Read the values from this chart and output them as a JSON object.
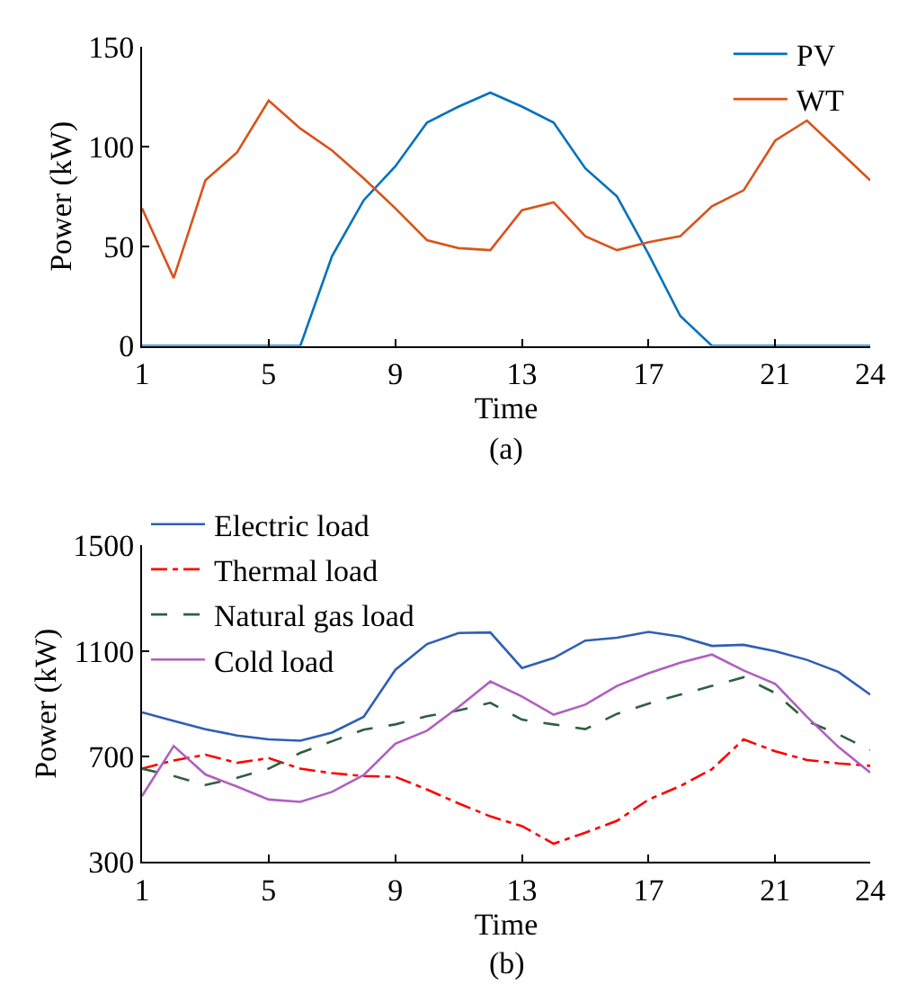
{
  "chart_data": [
    {
      "type": "line",
      "xlabel": "Time",
      "ylabel": "Power (kW)",
      "annotations": [
        "(a)"
      ],
      "x": [
        1,
        2,
        3,
        4,
        5,
        6,
        7,
        8,
        9,
        10,
        11,
        12,
        13,
        14,
        15,
        16,
        17,
        18,
        19,
        20,
        21,
        22,
        23,
        24
      ],
      "xlim": [
        1,
        24
      ],
      "xticks": [
        1,
        5,
        9,
        13,
        17,
        21,
        24
      ],
      "ylim": [
        0,
        150
      ],
      "yticks": [
        0,
        50,
        100,
        150
      ],
      "legend": "top right",
      "marker": "none",
      "series": [
        {
          "name": "PV",
          "color": "#0072bd",
          "line_style": "solid",
          "values": [
            0,
            0,
            0,
            0,
            0,
            0,
            45,
            73,
            90,
            112,
            120,
            127,
            120,
            112,
            89,
            75,
            46,
            15,
            0,
            0,
            0,
            0,
            0,
            0
          ]
        },
        {
          "name": "WT",
          "color": "#d95319",
          "line_style": "solid",
          "values": [
            69,
            34,
            83,
            97,
            123,
            109,
            98,
            84,
            69,
            53,
            49,
            48,
            68,
            72,
            55,
            48,
            52,
            55,
            70,
            78,
            103,
            113,
            98,
            83
          ]
        }
      ]
    },
    {
      "type": "line",
      "xlabel": "Time",
      "ylabel": "Power (kW)",
      "annotations": [
        "(b)"
      ],
      "x": [
        1,
        2,
        3,
        4,
        5,
        6,
        7,
        8,
        9,
        10,
        11,
        12,
        13,
        14,
        15,
        16,
        17,
        18,
        19,
        20,
        21,
        22,
        23,
        24
      ],
      "xlim": [
        1,
        24
      ],
      "xticks": [
        1,
        5,
        9,
        13,
        17,
        21,
        24
      ],
      "ylim": [
        300,
        1500
      ],
      "yticks": [
        300,
        700,
        1100,
        1500
      ],
      "legend": "top left",
      "marker": "none",
      "series": [
        {
          "name": "Electric load",
          "color": "#2e5fb5",
          "line_style": "solid",
          "values": [
            867,
            834,
            803,
            779,
            764,
            759,
            790,
            850,
            1028,
            1126,
            1168,
            1170,
            1035,
            1073,
            1139,
            1150,
            1172,
            1154,
            1119,
            1123,
            1099,
            1066,
            1020,
            934
          ]
        },
        {
          "name": "Thermal load",
          "color": "#ff0000",
          "line_style": "dashdot",
          "values": [
            653,
            684,
            706,
            675,
            693,
            653,
            636,
            625,
            622,
            574,
            521,
            472,
            435,
            368,
            410,
            455,
            536,
            587,
            651,
            764,
            719,
            686,
            673,
            664
          ]
        },
        {
          "name": "Natural gas load",
          "color": "#2f5f3f",
          "line_style": "dashed",
          "values": [
            653,
            625,
            591,
            618,
            653,
            713,
            757,
            801,
            821,
            852,
            874,
            903,
            839,
            821,
            803,
            861,
            900,
            934,
            967,
            1000,
            940,
            834,
            783,
            724
          ]
        },
        {
          "name": "Cold load",
          "color": "#b05fc0",
          "line_style": "solid",
          "values": [
            549,
            739,
            631,
            585,
            536,
            527,
            565,
            629,
            748,
            797,
            887,
            984,
            927,
            858,
            896,
            967,
            1015,
            1055,
            1086,
            1026,
            975,
            850,
            735,
            638
          ]
        }
      ]
    }
  ]
}
